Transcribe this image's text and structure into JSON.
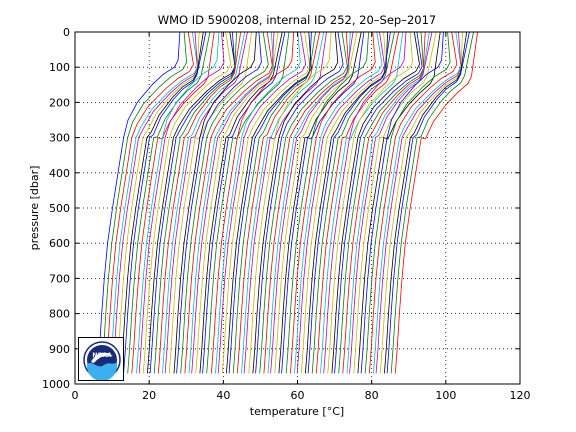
{
  "chart_data": {
    "type": "line",
    "title": "WMO ID 5900208, internal ID 252, 20–Sep–2017",
    "xlabel_prefix": "temperature [",
    "xlabel_unit": "°C",
    "xlabel_suffix": "]",
    "ylabel": "pressure [dbar]",
    "xlim": [
      0,
      120
    ],
    "ylim": [
      1000,
      0
    ],
    "y_reversed": true,
    "grid": true,
    "grid_style": "dotted",
    "x_ticks": [
      0,
      20,
      40,
      60,
      80,
      100,
      120
    ],
    "y_ticks": [
      0,
      100,
      200,
      300,
      400,
      500,
      600,
      700,
      800,
      900,
      1000
    ],
    "x_tick_labels": [
      "0",
      "20",
      "40",
      "60",
      "80",
      "100",
      "120"
    ],
    "y_tick_labels": [
      "0",
      "100",
      "200",
      "300",
      "400",
      "500",
      "600",
      "700",
      "800",
      "900",
      "1000"
    ],
    "series_colors": [
      "#0000ff",
      "#008000",
      "#ff0000",
      "#00bfbf",
      "#bf00bf",
      "#bfbf00",
      "#000000"
    ],
    "profile_offset_step": 1.0,
    "profile_count": 80,
    "base_profile": {
      "pressure": [
        0,
        80,
        100,
        120,
        150,
        200,
        250,
        300,
        400,
        500,
        600,
        700,
        800,
        900,
        970
      ],
      "temperature": [
        28.5,
        28.0,
        27.0,
        24.0,
        21.0,
        17.0,
        14.5,
        13.3,
        11.8,
        10.3,
        9.0,
        8.1,
        7.4,
        6.8,
        6.3
      ]
    }
  },
  "logo": {
    "text": "NOAA",
    "color_dark": "#1a2a7a",
    "color_light": "#3ab0f0"
  }
}
